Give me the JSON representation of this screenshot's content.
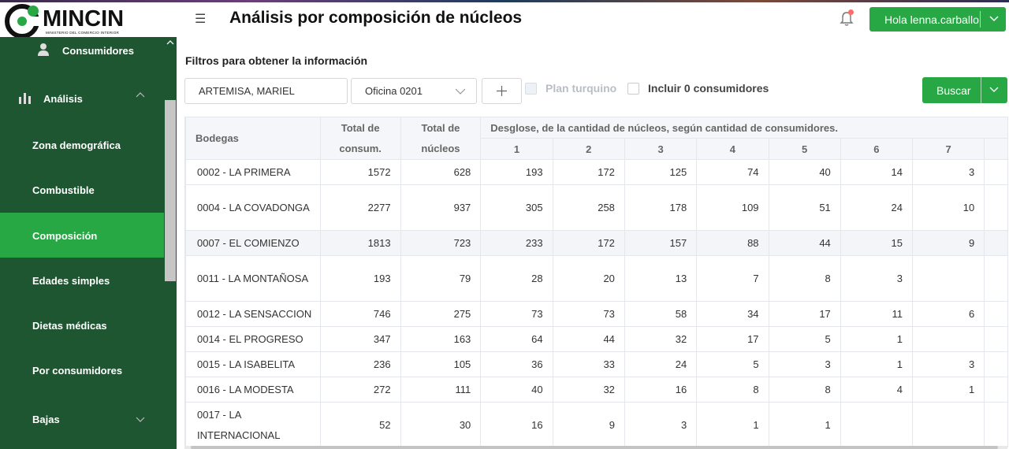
{
  "header": {
    "logo_text": "MINCIN",
    "logo_subtitle": "MINISTERIO DEL COMERCIO INTERIOR",
    "title": "Análisis por composición de núcleos",
    "user_greeting": "Hola lenna.carballo"
  },
  "sidebar": {
    "items": [
      {
        "label": "Consumidores",
        "icon": "user-icon"
      },
      {
        "label": "Análisis",
        "icon": "bar-chart-icon"
      },
      {
        "label": "Zona demográfica"
      },
      {
        "label": "Combustible"
      },
      {
        "label": "Composición",
        "active": true
      },
      {
        "label": "Edades simples"
      },
      {
        "label": "Dietas médicas"
      },
      {
        "label": "Por consumidores"
      },
      {
        "label": "Bajas"
      }
    ]
  },
  "filters": {
    "title": "Filtros para obtener la información",
    "municipio_value": "ARTEMISA, MARIEL",
    "oficina_value": "Oficina 0201",
    "plan_turquino_label": "Plan turquino",
    "incluir_label": "Incluir 0 consumidores",
    "buscar_label": "Buscar"
  },
  "table": {
    "headers": {
      "bodegas": "Bodegas",
      "total_consum": "Total de consum.",
      "total_nucleos": "Total de núcleos",
      "desglose": "Desglose, de la cantidad de núcleos, según cantidad de consumidores.",
      "sub": [
        "1",
        "2",
        "3",
        "4",
        "5",
        "6",
        "7"
      ]
    },
    "rows": [
      {
        "name": "0002 - LA PRIMERA",
        "consum": "1572",
        "nucleos": "628",
        "d": [
          "193",
          "172",
          "125",
          "74",
          "40",
          "14",
          "3"
        ]
      },
      {
        "name": "0004 - LA COVADONGA",
        "consum": "2277",
        "nucleos": "937",
        "d": [
          "305",
          "258",
          "178",
          "109",
          "51",
          "24",
          "10"
        ]
      },
      {
        "name": "0007 - EL COMIENZO",
        "consum": "1813",
        "nucleos": "723",
        "d": [
          "233",
          "172",
          "157",
          "88",
          "44",
          "15",
          "9"
        ]
      },
      {
        "name": "0011 - LA MONTAÑOSA",
        "consum": "193",
        "nucleos": "79",
        "d": [
          "28",
          "20",
          "13",
          "7",
          "8",
          "3",
          ""
        ]
      },
      {
        "name": "0012 - LA SENSACCION",
        "consum": "746",
        "nucleos": "275",
        "d": [
          "73",
          "73",
          "58",
          "34",
          "17",
          "11",
          "6"
        ]
      },
      {
        "name": "0014 - EL PROGRESO",
        "consum": "347",
        "nucleos": "163",
        "d": [
          "64",
          "44",
          "32",
          "17",
          "5",
          "1",
          ""
        ]
      },
      {
        "name": "0015 - LA ISABELITA",
        "consum": "236",
        "nucleos": "105",
        "d": [
          "36",
          "33",
          "24",
          "5",
          "3",
          "1",
          "3"
        ]
      },
      {
        "name": "0016 - LA MODESTA",
        "consum": "272",
        "nucleos": "111",
        "d": [
          "40",
          "32",
          "16",
          "8",
          "8",
          "4",
          "1"
        ]
      },
      {
        "name": "0017 - LA INTERNACIONAL",
        "consum": "52",
        "nucleos": "30",
        "d": [
          "16",
          "9",
          "3",
          "1",
          "1",
          "",
          ""
        ]
      }
    ]
  }
}
